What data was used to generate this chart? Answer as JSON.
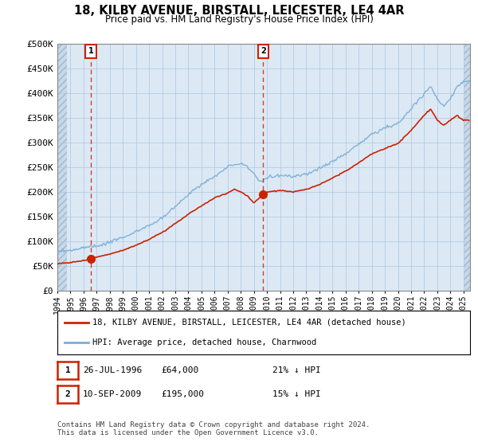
{
  "title": "18, KILBY AVENUE, BIRSTALL, LEICESTER, LE4 4AR",
  "subtitle": "Price paid vs. HM Land Registry's House Price Index (HPI)",
  "ylim": [
    0,
    500000
  ],
  "yticks": [
    0,
    50000,
    100000,
    150000,
    200000,
    250000,
    300000,
    350000,
    400000,
    450000,
    500000
  ],
  "ytick_labels": [
    "£0",
    "£50K",
    "£100K",
    "£150K",
    "£200K",
    "£250K",
    "£300K",
    "£350K",
    "£400K",
    "£450K",
    "£500K"
  ],
  "hpi_color": "#7bafd4",
  "price_color": "#cc2200",
  "sale1_date": 1996.57,
  "sale1_price": 64000,
  "sale2_date": 2009.71,
  "sale2_price": 195000,
  "legend_line1": "18, KILBY AVENUE, BIRSTALL, LEICESTER, LE4 4AR (detached house)",
  "legend_line2": "HPI: Average price, detached house, Charnwood",
  "table_row1": [
    "1",
    "26-JUL-1996",
    "£64,000",
    "21% ↓ HPI"
  ],
  "table_row2": [
    "2",
    "10-SEP-2009",
    "£195,000",
    "15% ↓ HPI"
  ],
  "footer": "Contains HM Land Registry data © Crown copyright and database right 2024.\nThis data is licensed under the Open Government Licence v3.0.",
  "bg_plot": "#dce9f5",
  "grid_color": "#b0c8e0",
  "hatch_bg": "#c8d8ea",
  "xmin": 1994,
  "xmax": 2025.5
}
